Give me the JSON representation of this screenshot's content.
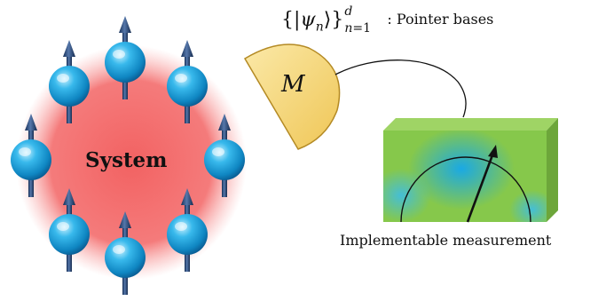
{
  "system": {
    "label": "System",
    "glow_color": "#f26262",
    "spin_color": "#1fa4dc",
    "arrow_color": "#1f3a6b"
  },
  "pointer_bases": {
    "set_symbol": "ψ",
    "index": "n",
    "superscript": "d",
    "subscript_var": "n",
    "subscript_rest": "=1",
    "separator": ":",
    "text": "Pointer bases"
  },
  "meter": {
    "letter": "M",
    "color": "#f6d67a"
  },
  "device": {
    "label": "Implementable measurement",
    "front_color": "#86c84b",
    "blob_color": "#22aee0"
  }
}
